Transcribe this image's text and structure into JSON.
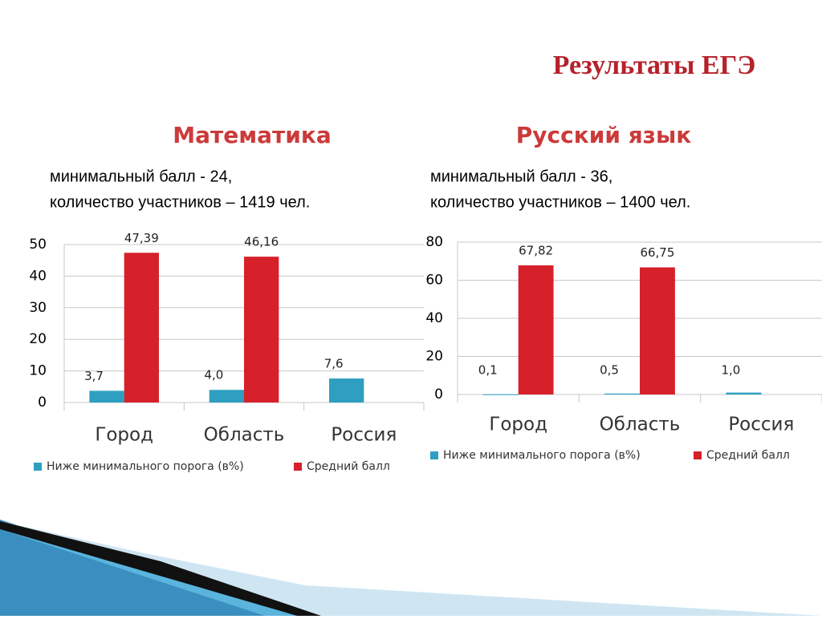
{
  "title": "Результаты ЕГЭ",
  "chart_data": [
    {
      "type": "bar",
      "title": "Математика",
      "notes": [
        "минимальный балл - 24,",
        "количество участников – 1419 чел."
      ],
      "categories": [
        "Город",
        "Область",
        "Россия"
      ],
      "series": [
        {
          "name": "Ниже минимального порога (в%)",
          "color": "#2e9fc0",
          "values": [
            3.7,
            4.0,
            7.6
          ],
          "value_labels": [
            "3,7",
            "4,0",
            "7,6"
          ]
        },
        {
          "name": "Средний балл",
          "color": "#d6202a",
          "values": [
            47.39,
            46.16,
            null
          ],
          "value_labels": [
            "47,39",
            "46,16",
            null
          ]
        }
      ],
      "ylim": [
        0,
        50
      ],
      "yticks": [
        0,
        10,
        20,
        30,
        40,
        50
      ],
      "grid": true
    },
    {
      "type": "bar",
      "title": "Русский язык",
      "notes": [
        "минимальный балл - 36,",
        "количество участников – 1400 чел."
      ],
      "categories": [
        "Город",
        "Область",
        "Россия"
      ],
      "series": [
        {
          "name": "Ниже минимального порога (в%)",
          "color": "#2e9fc0",
          "values": [
            0.1,
            0.5,
            1.0
          ],
          "value_labels": [
            "0,1",
            "0,5",
            "1,0"
          ]
        },
        {
          "name": "Средний балл",
          "color": "#d6202a",
          "values": [
            67.82,
            66.75,
            null
          ],
          "value_labels": [
            "67,82",
            "66,75",
            null
          ]
        }
      ],
      "ylim": [
        0,
        80
      ],
      "yticks": [
        0,
        20,
        40,
        60,
        80
      ],
      "grid": true
    }
  ]
}
